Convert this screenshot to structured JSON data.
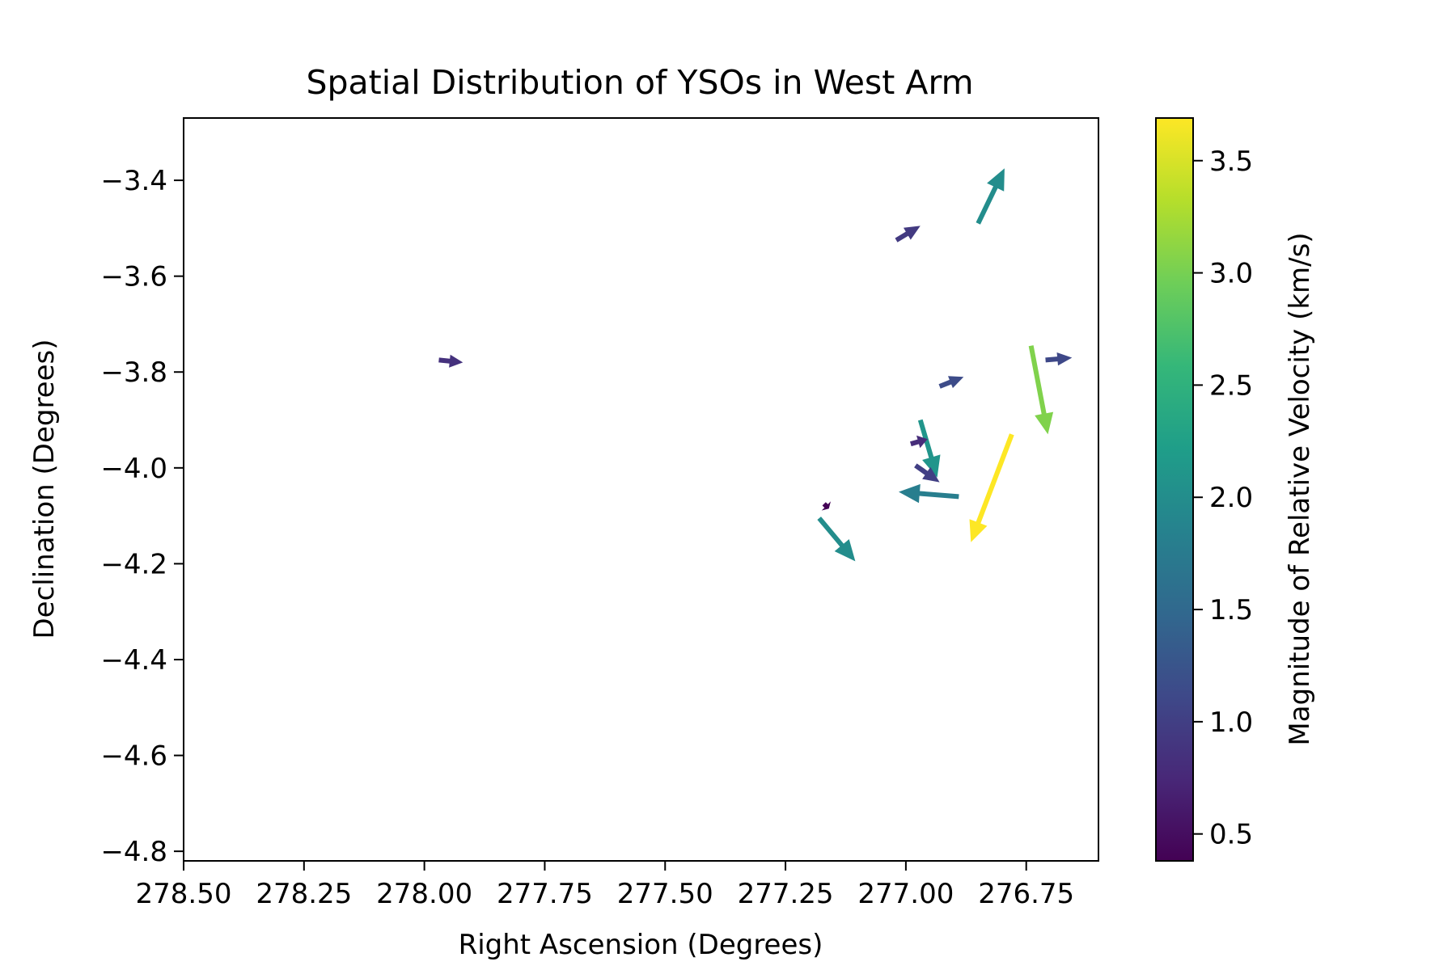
{
  "chart_data": {
    "type": "quiver",
    "title": "Spatial Distribution of YSOs in West Arm",
    "xlabel": "Right Ascension (Degrees)",
    "ylabel": "Declination (Degrees)",
    "colorbar_label": "Magnitude of Relative Velocity (km/s)",
    "x_inverted": true,
    "xlim": [
      278.5,
      276.6
    ],
    "ylim": [
      -4.82,
      -3.27
    ],
    "x_ticks": [
      278.5,
      278.25,
      278.0,
      277.75,
      277.5,
      277.25,
      277.0,
      276.75
    ],
    "x_tick_labels": [
      "278.50",
      "278.25",
      "278.00",
      "277.75",
      "277.50",
      "277.25",
      "277.00",
      "276.75"
    ],
    "y_ticks": [
      -3.4,
      -3.6,
      -3.8,
      -4.0,
      -4.2,
      -4.4,
      -4.6,
      -4.8
    ],
    "y_tick_labels": [
      "−3.4",
      "−3.6",
      "−3.8",
      "−4.0",
      "−4.2",
      "−4.4",
      "−4.6",
      "−4.8"
    ],
    "colorbar": {
      "colormap": "viridis",
      "range": [
        0.38,
        3.69
      ],
      "ticks": [
        0.5,
        1.0,
        1.5,
        2.0,
        2.5,
        3.0,
        3.5
      ],
      "tick_labels": [
        "0.5",
        "1.0",
        "1.5",
        "2.0",
        "2.5",
        "3.0",
        "3.5"
      ],
      "colors": [
        "#440154",
        "#482878",
        "#3e4989",
        "#31688e",
        "#26828e",
        "#1f9e89",
        "#35b779",
        "#6ece58",
        "#b5de2b",
        "#fde725"
      ]
    },
    "grid": false,
    "vectors": [
      {
        "ra": 277.97,
        "dec": -3.775,
        "dra": -0.05,
        "ddec": -0.005,
        "magnitude": 0.85
      },
      {
        "ra": 277.02,
        "dec": -3.525,
        "dra": -0.05,
        "ddec": 0.03,
        "magnitude": 0.95
      },
      {
        "ra": 276.85,
        "dec": -3.49,
        "dra": -0.055,
        "ddec": 0.115,
        "magnitude": 2.0
      },
      {
        "ra": 276.71,
        "dec": -3.775,
        "dra": -0.055,
        "ddec": 0.005,
        "magnitude": 1.1
      },
      {
        "ra": 276.74,
        "dec": -3.745,
        "dra": -0.035,
        "ddec": -0.185,
        "magnitude": 3.05
      },
      {
        "ra": 276.93,
        "dec": -3.83,
        "dra": -0.05,
        "ddec": 0.02,
        "magnitude": 1.15
      },
      {
        "ra": 276.97,
        "dec": -3.9,
        "dra": -0.035,
        "ddec": -0.12,
        "magnitude": 2.1
      },
      {
        "ra": 276.99,
        "dec": -3.95,
        "dra": -0.035,
        "ddec": 0.01,
        "magnitude": 0.8
      },
      {
        "ra": 276.98,
        "dec": -3.995,
        "dra": -0.05,
        "ddec": -0.035,
        "magnitude": 1.0
      },
      {
        "ra": 276.89,
        "dec": -4.06,
        "dra": 0.125,
        "ddec": 0.01,
        "magnitude": 1.8
      },
      {
        "ra": 276.78,
        "dec": -3.93,
        "dra": 0.085,
        "ddec": -0.225,
        "magnitude": 3.69
      },
      {
        "ra": 277.17,
        "dec": -4.075,
        "dra": -0.01,
        "ddec": -0.01,
        "magnitude": 0.4
      },
      {
        "ra": 277.18,
        "dec": -4.105,
        "dra": -0.075,
        "ddec": -0.09,
        "magnitude": 2.0
      }
    ]
  }
}
